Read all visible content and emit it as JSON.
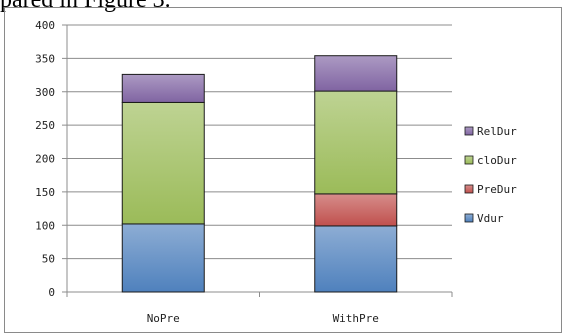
{
  "fragment_text": "pared in Figure 3.",
  "colors": {
    "Vdur": "#4f81bd",
    "PreDur": "#c0504d",
    "cloDur": "#9bbb59",
    "RelDur": "#8064a2"
  },
  "chart_data": {
    "type": "bar",
    "stacked": true,
    "categories": [
      "NoPre",
      "WithPre"
    ],
    "series": [
      {
        "name": "Vdur",
        "values": [
          102,
          99
        ]
      },
      {
        "name": "PreDur",
        "values": [
          0,
          48
        ]
      },
      {
        "name": "cloDur",
        "values": [
          182,
          154
        ]
      },
      {
        "name": "RelDur",
        "values": [
          42,
          53
        ]
      }
    ],
    "legend_order": [
      "RelDur",
      "cloDur",
      "PreDur",
      "Vdur"
    ],
    "ylim": [
      0,
      400
    ],
    "yticks": [
      "0",
      "50",
      "100",
      "150",
      "200",
      "250",
      "300",
      "350",
      "400"
    ],
    "gridlines": true,
    "legend_position": "right",
    "title": "",
    "xlabel": "",
    "ylabel": ""
  }
}
